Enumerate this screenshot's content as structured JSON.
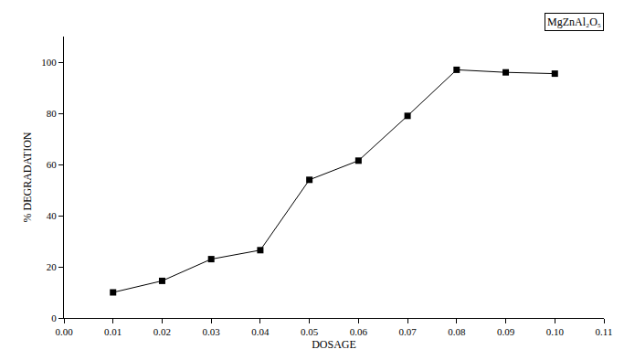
{
  "chart_data": {
    "type": "line",
    "title": "MgZnAl₂O₅",
    "x_label": "DOSAGE",
    "y_label": "% DEGRADATION",
    "x": [
      0.01,
      0.02,
      0.03,
      0.04,
      0.05,
      0.06,
      0.07,
      0.08,
      0.09,
      0.1
    ],
    "values": [
      10,
      14.5,
      23,
      26.5,
      54,
      61.5,
      79,
      97,
      96,
      95.5
    ],
    "color": "#000000",
    "marker": "square",
    "line_style": "solid",
    "xlim": [
      0,
      0.11
    ],
    "xticks": [
      {
        "value": 0,
        "label": "0.00"
      },
      {
        "value": 0.01,
        "label": "0.01"
      },
      {
        "value": 0.02,
        "label": "0.02"
      },
      {
        "value": 0.03,
        "label": "0.03"
      },
      {
        "value": 0.04,
        "label": "0.04"
      },
      {
        "value": 0.05,
        "label": "0.05"
      },
      {
        "value": 0.06,
        "label": "0.06"
      },
      {
        "value": 0.07,
        "label": "0.07"
      },
      {
        "value": 0.08,
        "label": "0.08"
      },
      {
        "value": 0.09,
        "label": "0.09"
      },
      {
        "value": 0.1,
        "label": "0.10"
      },
      {
        "value": 0.11,
        "label": "0.11"
      }
    ],
    "ylim": [
      0,
      110
    ],
    "yticks": [
      0,
      20,
      40,
      60,
      80,
      100
    ],
    "grid": false
  }
}
